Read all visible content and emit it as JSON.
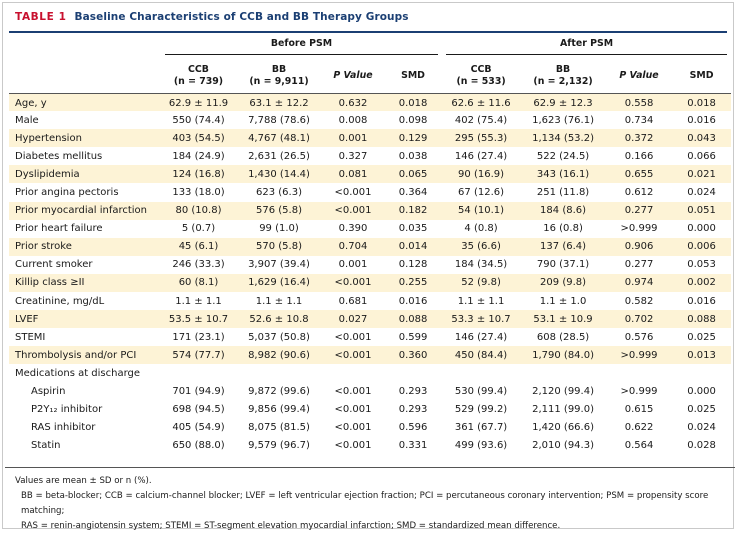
{
  "title": {
    "label": "TABLE 1",
    "text": "Baseline Characteristics of CCB and BB Therapy Groups"
  },
  "groups": {
    "before": "Before PSM",
    "after": "After PSM"
  },
  "headers": {
    "before": [
      {
        "line1": "CCB",
        "line2": "(n = 739)"
      },
      {
        "line1": "BB",
        "line2": "(n = 9,911)"
      },
      {
        "line1": "P Value",
        "line2": ""
      },
      {
        "line1": "SMD",
        "line2": ""
      }
    ],
    "after": [
      {
        "line1": "CCB",
        "line2": "(n = 533)"
      },
      {
        "line1": "BB",
        "line2": "(n = 2,132)"
      },
      {
        "line1": "P Value",
        "line2": ""
      },
      {
        "line1": "SMD",
        "line2": ""
      }
    ]
  },
  "rows": [
    {
      "label": "Age, y",
      "vals": [
        "62.9 ± 11.9",
        "63.1 ± 12.2",
        "0.632",
        "0.018",
        "62.6 ± 11.6",
        "62.9 ± 12.3",
        "0.558",
        "0.018"
      ],
      "alt": true,
      "sub": false
    },
    {
      "label": "Male",
      "vals": [
        "550 (74.4)",
        "7,788 (78.6)",
        "0.008",
        "0.098",
        "402 (75.4)",
        "1,623 (76.1)",
        "0.734",
        "0.016"
      ],
      "alt": false,
      "sub": false
    },
    {
      "label": "Hypertension",
      "vals": [
        "403 (54.5)",
        "4,767 (48.1)",
        "0.001",
        "0.129",
        "295 (55.3)",
        "1,134 (53.2)",
        "0.372",
        "0.043"
      ],
      "alt": true,
      "sub": false
    },
    {
      "label": "Diabetes mellitus",
      "vals": [
        "184 (24.9)",
        "2,631 (26.5)",
        "0.327",
        "0.038",
        "146 (27.4)",
        "522 (24.5)",
        "0.166",
        "0.066"
      ],
      "alt": false,
      "sub": false
    },
    {
      "label": "Dyslipidemia",
      "vals": [
        "124 (16.8)",
        "1,430 (14.4)",
        "0.081",
        "0.065",
        "90 (16.9)",
        "343 (16.1)",
        "0.655",
        "0.021"
      ],
      "alt": true,
      "sub": false
    },
    {
      "label": "Prior angina pectoris",
      "vals": [
        "133 (18.0)",
        "623 (6.3)",
        "<0.001",
        "0.364",
        "67 (12.6)",
        "251 (11.8)",
        "0.612",
        "0.024"
      ],
      "alt": false,
      "sub": false
    },
    {
      "label": "Prior myocardial infarction",
      "vals": [
        "80 (10.8)",
        "576 (5.8)",
        "<0.001",
        "0.182",
        "54 (10.1)",
        "184 (8.6)",
        "0.277",
        "0.051"
      ],
      "alt": true,
      "sub": false
    },
    {
      "label": "Prior heart failure",
      "vals": [
        "5 (0.7)",
        "99 (1.0)",
        "0.390",
        "0.035",
        "4 (0.8)",
        "16 (0.8)",
        ">0.999",
        "0.000"
      ],
      "alt": false,
      "sub": false
    },
    {
      "label": "Prior stroke",
      "vals": [
        "45 (6.1)",
        "570 (5.8)",
        "0.704",
        "0.014",
        "35 (6.6)",
        "137 (6.4)",
        "0.906",
        "0.006"
      ],
      "alt": true,
      "sub": false
    },
    {
      "label": "Current smoker",
      "vals": [
        "246 (33.3)",
        "3,907 (39.4)",
        "0.001",
        "0.128",
        "184 (34.5)",
        "790 (37.1)",
        "0.277",
        "0.053"
      ],
      "alt": false,
      "sub": false
    },
    {
      "label": "Killip class ≥II",
      "vals": [
        "60 (8.1)",
        "1,629 (16.4)",
        "<0.001",
        "0.255",
        "52 (9.8)",
        "209 (9.8)",
        "0.974",
        "0.002"
      ],
      "alt": true,
      "sub": false
    },
    {
      "label": "Creatinine, mg/dL",
      "vals": [
        "1.1 ± 1.1",
        "1.1 ± 1.1",
        "0.681",
        "0.016",
        "1.1 ± 1.1",
        "1.1 ± 1.0",
        "0.582",
        "0.016"
      ],
      "alt": false,
      "sub": false
    },
    {
      "label": "LVEF",
      "vals": [
        "53.5 ± 10.7",
        "52.6 ± 10.8",
        "0.027",
        "0.088",
        "53.3 ± 10.7",
        "53.1 ± 10.9",
        "0.702",
        "0.088"
      ],
      "alt": true,
      "sub": false
    },
    {
      "label": "STEMI",
      "vals": [
        "171 (23.1)",
        "5,037 (50.8)",
        "<0.001",
        "0.599",
        "146 (27.4)",
        "608 (28.5)",
        "0.576",
        "0.025"
      ],
      "alt": false,
      "sub": false
    },
    {
      "label": "Thrombolysis and/or PCI",
      "vals": [
        "574 (77.7)",
        "8,982 (90.6)",
        "<0.001",
        "0.360",
        "450 (84.4)",
        "1,790 (84.0)",
        ">0.999",
        "0.013"
      ],
      "alt": true,
      "sub": false
    },
    {
      "label": "Medications at discharge",
      "vals": [
        "",
        "",
        "",
        "",
        "",
        "",
        "",
        ""
      ],
      "alt": false,
      "sub": false
    },
    {
      "label": "Aspirin",
      "vals": [
        "701 (94.9)",
        "9,872 (99.6)",
        "<0.001",
        "0.293",
        "530 (99.4)",
        "2,120 (99.4)",
        ">0.999",
        "0.000"
      ],
      "alt": false,
      "sub": true
    },
    {
      "label": "P2Y₁₂ inhibitor",
      "vals": [
        "698 (94.5)",
        "9,856 (99.4)",
        "<0.001",
        "0.293",
        "529 (99.2)",
        "2,111 (99.0)",
        "0.615",
        "0.025"
      ],
      "alt": false,
      "sub": true
    },
    {
      "label": "RAS inhibitor",
      "vals": [
        "405 (54.9)",
        "8,075 (81.5)",
        "<0.001",
        "0.596",
        "361 (67.7)",
        "1,420 (66.6)",
        "0.622",
        "0.024"
      ],
      "alt": false,
      "sub": true
    },
    {
      "label": "Statin",
      "vals": [
        "650 (88.0)",
        "9,579 (96.7)",
        "<0.001",
        "0.331",
        "499 (93.6)",
        "2,010 (94.3)",
        "0.564",
        "0.028"
      ],
      "alt": false,
      "sub": true
    }
  ],
  "footer": {
    "note": "Values are mean ± SD or n (%).",
    "abbr1": "BB = beta-blocker; CCB = calcium-channel blocker; LVEF = left ventricular ejection fraction; PCI = percutaneous coronary intervention; PSM = propensity score matching;",
    "abbr2": "RAS = renin-angiotensin system; STEMI = ST-segment elevation myocardial infarction; SMD = standardized mean difference."
  },
  "colors": {
    "title_red": "#c8102e",
    "title_blue": "#1b3f73",
    "stripe": "#fdf3d6"
  }
}
